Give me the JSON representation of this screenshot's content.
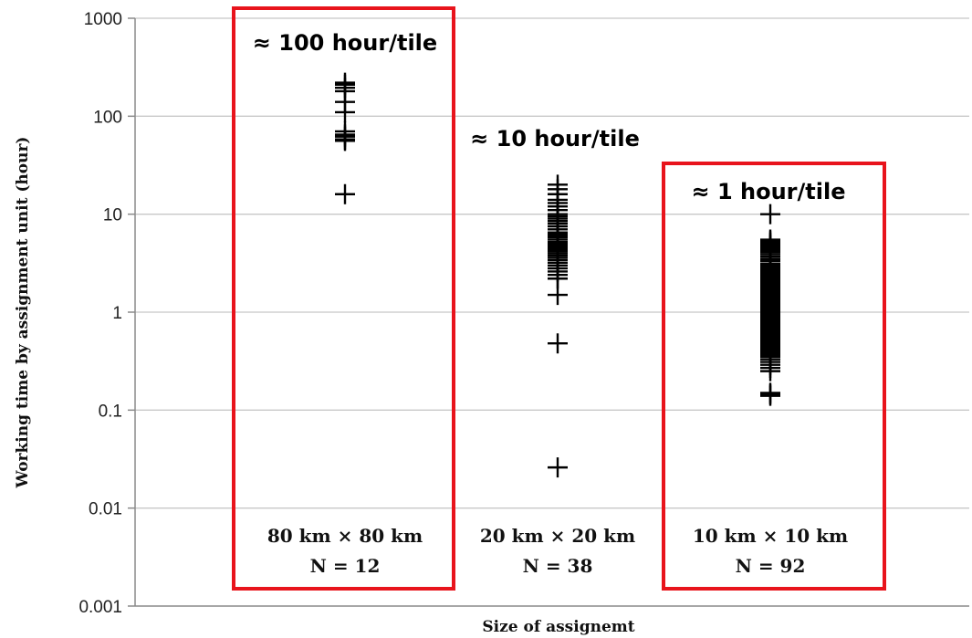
{
  "chart_data": {
    "type": "scatter",
    "title": "",
    "xlabel": "Size of assignemt",
    "ylabel": "Working time by assignment unit (hour)",
    "yscale": "log",
    "ylim": [
      0.001,
      1000
    ],
    "yticks": [
      "1000",
      "100",
      "10",
      "1",
      "0.1",
      "0.01",
      "0.001"
    ],
    "grid": true,
    "legend": "none",
    "marker": "+",
    "groups": [
      {
        "size_label": "80 km × 80 km",
        "n_label": "N = 12",
        "annotation": "≈ 100 hour/tile",
        "highlighted": true,
        "values": [
          220,
          210,
          195,
          180,
          140,
          110,
          70,
          65,
          62,
          58,
          56,
          16
        ]
      },
      {
        "size_label": "20 km × 20 km",
        "n_label": "N = 38",
        "annotation": "≈ 10 hour/tile",
        "highlighted": false,
        "values": [
          20,
          18,
          16,
          14,
          13,
          12,
          11,
          10,
          9.5,
          9,
          8.5,
          8,
          7.5,
          7,
          6.5,
          6.2,
          6,
          5.8,
          5.5,
          5.2,
          5,
          4.8,
          4.6,
          4.4,
          4.2,
          4,
          3.8,
          3.6,
          3.4,
          3.2,
          3,
          2.8,
          2.6,
          2.4,
          2.2,
          1.5,
          0.48,
          0.026
        ]
      },
      {
        "size_label": "10 km × 10 km",
        "n_label": "N = 92",
        "annotation": "≈ 1 hour/tile",
        "highlighted": true,
        "values": [
          10,
          5.5,
          5.3,
          5.1,
          4.9,
          4.7,
          4.5,
          4.3,
          4.1,
          3.9,
          3.7,
          3.5,
          3.4,
          3.3,
          3.1,
          3.0,
          2.9,
          2.8,
          2.7,
          2.6,
          2.5,
          2.4,
          2.3,
          2.2,
          2.1,
          2.0,
          1.95,
          1.9,
          1.85,
          1.8,
          1.75,
          1.7,
          1.65,
          1.6,
          1.55,
          1.5,
          1.45,
          1.4,
          1.35,
          1.3,
          1.25,
          1.2,
          1.15,
          1.1,
          1.06,
          1.03,
          1.0,
          0.97,
          0.94,
          0.91,
          0.88,
          0.85,
          0.82,
          0.8,
          0.78,
          0.76,
          0.74,
          0.72,
          0.7,
          0.68,
          0.66,
          0.64,
          0.62,
          0.6,
          0.58,
          0.56,
          0.54,
          0.52,
          0.5,
          0.49,
          0.48,
          0.47,
          0.46,
          0.45,
          0.44,
          0.43,
          0.42,
          0.41,
          0.4,
          0.39,
          0.38,
          0.37,
          0.36,
          0.35,
          0.33,
          0.31,
          0.29,
          0.27,
          0.25,
          0.15,
          0.145,
          0.14
        ]
      }
    ],
    "highlight_color": "#e8141c"
  }
}
